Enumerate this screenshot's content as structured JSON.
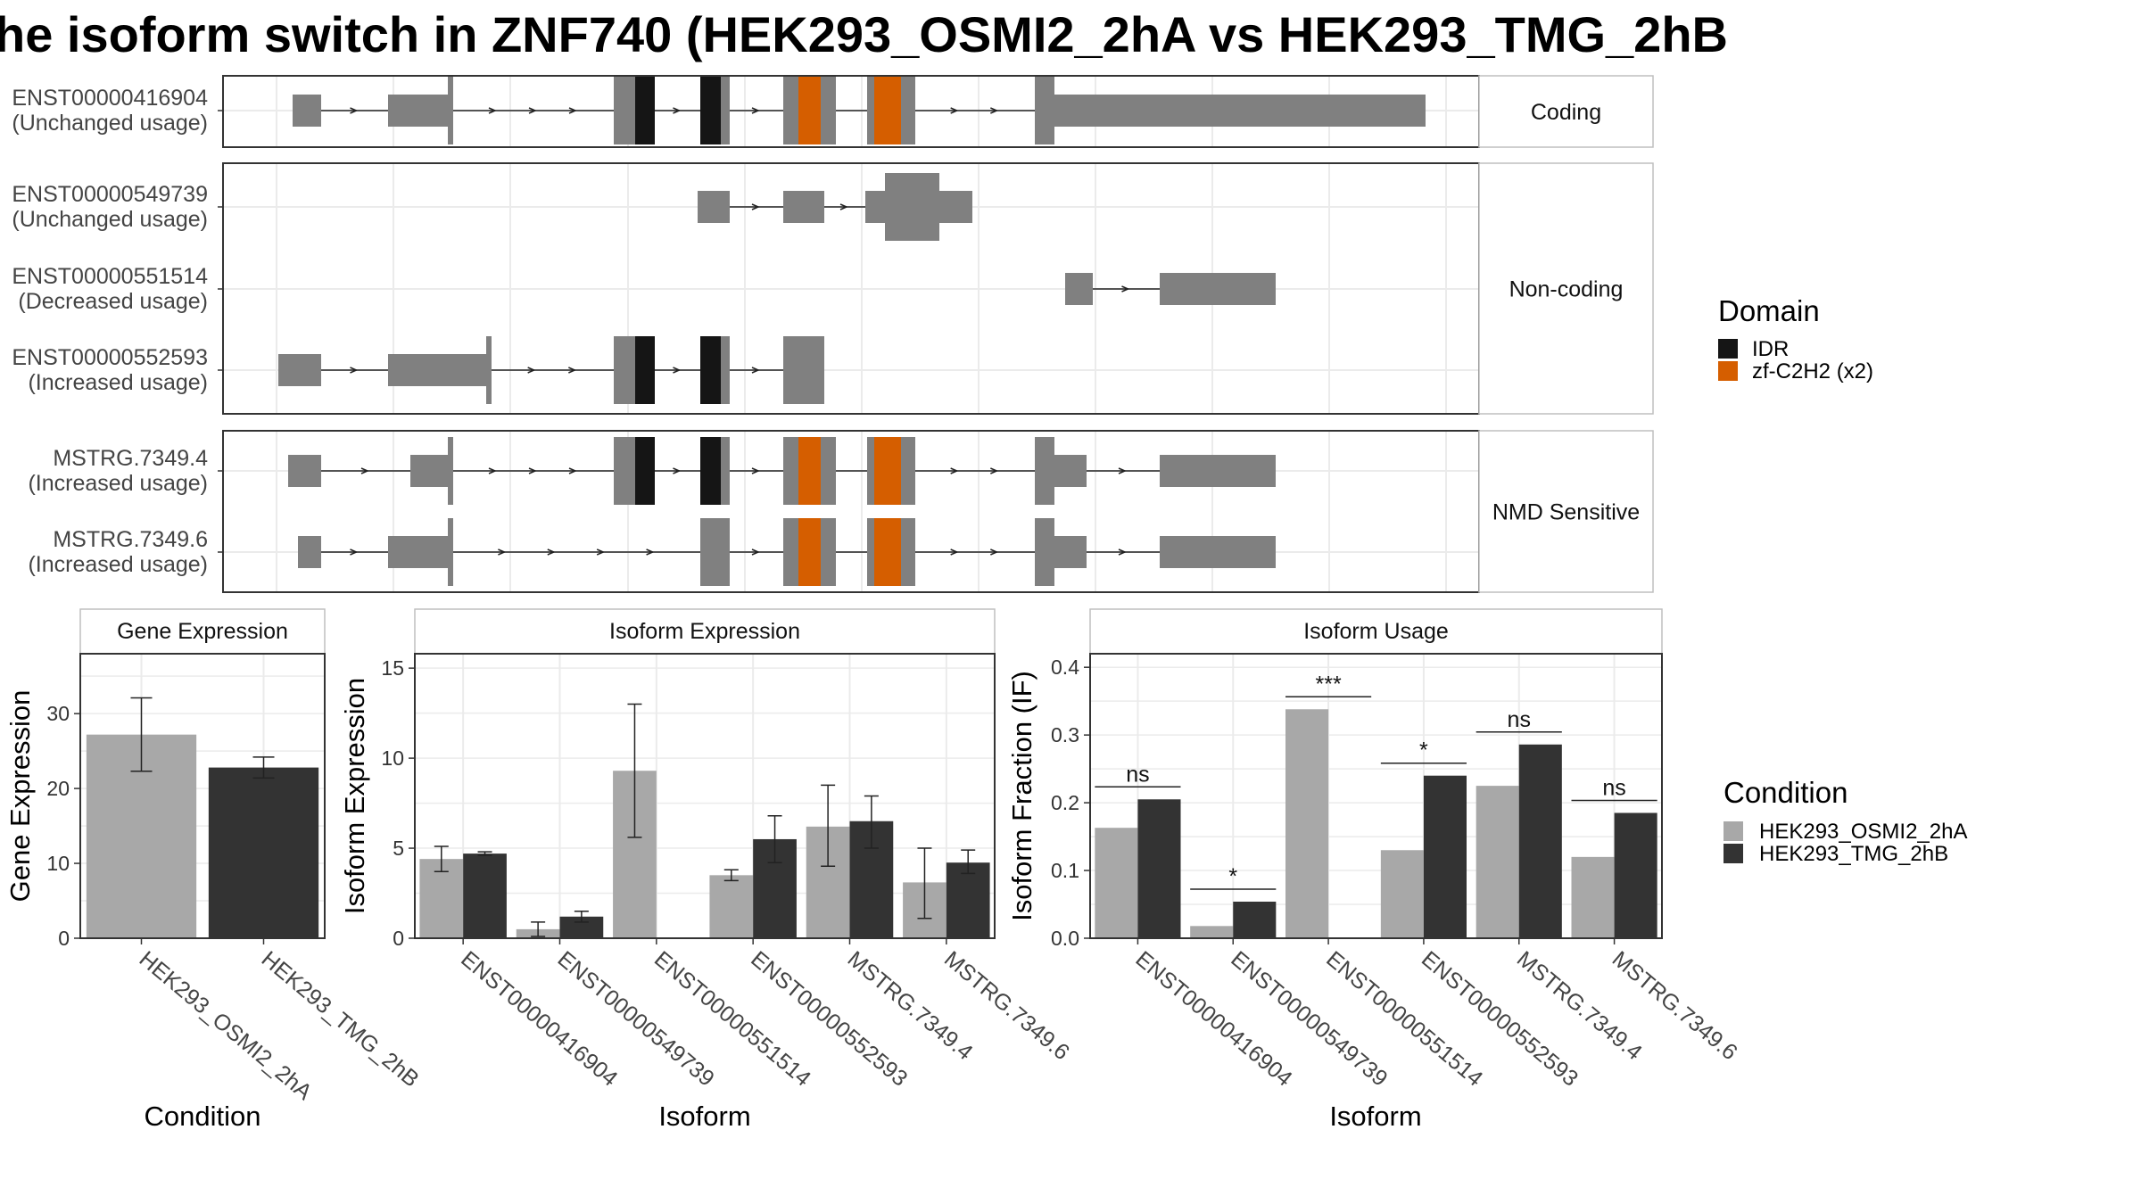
{
  "title": "he isoform switch in ZNF740 (HEK293_OSMI2_2hA vs HEK293_TMG_2hB",
  "colors": {
    "exon": "#808080",
    "idr": "#151515",
    "zf": "#D55E00",
    "cond1": "#A8A8A8",
    "cond2": "#333333",
    "grid": "#EBEBEB",
    "panel_border": "#333333",
    "strip_border": "#BFBFBF"
  },
  "structure": {
    "panels": [
      {
        "label": "Coding",
        "rows": [
          {
            "id": "ENST00000416904",
            "usage": "(Unchanged usage)"
          }
        ]
      },
      {
        "label": "Non-coding",
        "rows": [
          {
            "id": "ENST00000549739",
            "usage": "(Unchanged usage)"
          },
          {
            "id": "ENST00000551514",
            "usage": "(Decreased usage)"
          },
          {
            "id": "ENST00000552593",
            "usage": "(Increased usage)"
          }
        ]
      },
      {
        "label": "NMD Sensitive",
        "rows": [
          {
            "id": "MSTRG.7349.4",
            "usage": "(Increased usage)"
          },
          {
            "id": "MSTRG.7349.6",
            "usage": "(Increased usage)"
          }
        ]
      }
    ]
  },
  "domain_legend": {
    "title": "Domain",
    "items": [
      {
        "label": "IDR",
        "color": "#151515"
      },
      {
        "label": "zf-C2H2 (x2)",
        "color": "#D55E00"
      }
    ]
  },
  "condition_legend": {
    "title": "Condition",
    "items": [
      {
        "label": "HEK293_OSMI2_2hA",
        "color": "#A8A8A8"
      },
      {
        "label": "HEK293_TMG_2hB",
        "color": "#333333"
      }
    ]
  },
  "chart_data": [
    {
      "type": "bar",
      "title": "Gene Expression",
      "xlabel": "Condition",
      "ylabel": "Gene Expression",
      "categories": [
        "HEK293_OSMI2_2hA",
        "HEK293_TMG_2hB"
      ],
      "values": [
        27.2,
        22.8
      ],
      "errors": [
        [
          22.3,
          32.1
        ],
        [
          21.4,
          24.2
        ]
      ],
      "colors": [
        "#A8A8A8",
        "#333333"
      ],
      "ylim": [
        0,
        38
      ],
      "yticks": [
        0,
        10,
        20,
        30
      ],
      "grid": true
    },
    {
      "type": "bar",
      "title": "Isoform Expression",
      "xlabel": "Isoform",
      "ylabel": "Isoform Expression",
      "categories": [
        "ENST00000416904",
        "ENST00000549739",
        "ENST00000551514",
        "ENST00000552593",
        "MSTRG.7349.4",
        "MSTRG.7349.6"
      ],
      "series": [
        {
          "name": "HEK293_OSMI2_2hA",
          "values": [
            4.4,
            0.5,
            9.3,
            3.5,
            6.2,
            3.1
          ],
          "errors": [
            [
              3.7,
              5.1
            ],
            [
              0.1,
              0.9
            ],
            [
              5.6,
              13.0
            ],
            [
              3.2,
              3.8
            ],
            [
              4.0,
              8.5
            ],
            [
              1.1,
              5.0
            ]
          ]
        },
        {
          "name": "HEK293_TMG_2hB",
          "values": [
            4.7,
            1.2,
            0.0,
            5.5,
            6.5,
            4.2
          ],
          "errors": [
            [
              4.6,
              4.8
            ],
            [
              0.9,
              1.5
            ],
            [
              0.0,
              0.0
            ],
            [
              4.2,
              6.8
            ],
            [
              5.0,
              7.9
            ],
            [
              3.6,
              4.9
            ]
          ]
        }
      ],
      "ylim": [
        0,
        15.8
      ],
      "yticks": [
        0,
        5,
        10,
        15
      ],
      "grid": true
    },
    {
      "type": "bar",
      "title": "Isoform Usage",
      "xlabel": "Isoform",
      "ylabel": "Isoform Fraction (IF)",
      "categories": [
        "ENST00000416904",
        "ENST00000549739",
        "ENST00000551514",
        "ENST00000552593",
        "MSTRG.7349.4",
        "MSTRG.7349.6"
      ],
      "series": [
        {
          "name": "HEK293_OSMI2_2hA",
          "values": [
            0.163,
            0.018,
            0.338,
            0.13,
            0.225,
            0.12
          ]
        },
        {
          "name": "HEK293_TMG_2hB",
          "values": [
            0.205,
            0.054,
            0.0,
            0.24,
            0.286,
            0.185
          ]
        }
      ],
      "significance": [
        "ns",
        "*",
        "***",
        "*",
        "ns",
        "ns"
      ],
      "ylim": [
        0,
        0.42
      ],
      "yticks": [
        0.0,
        0.1,
        0.2,
        0.3,
        0.4
      ],
      "ytick_labels": [
        "0.0",
        "0.1",
        "0.2",
        "0.3",
        "0.4"
      ],
      "grid": true
    }
  ]
}
